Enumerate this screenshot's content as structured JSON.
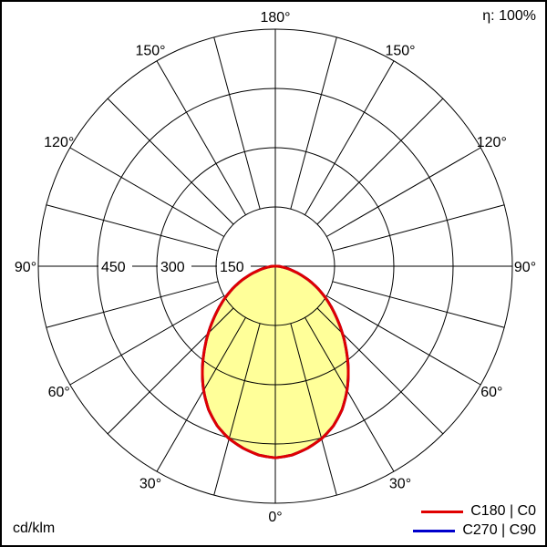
{
  "chart_data": {
    "type": "polar",
    "unit_label": "cd/klm",
    "efficiency_label": "η: 100%",
    "angle_step_deg": 5,
    "curve_fill_color": "#ffff99",
    "series": [
      {
        "name": "C180 | C0",
        "color": "#e00000",
        "values": [
          485,
          480,
          468,
          452,
          430,
          400,
          363,
          322,
          280,
          240,
          202,
          168,
          136,
          105,
          75,
          48,
          28,
          14,
          6
        ]
      },
      {
        "name": "C270 | C90",
        "color": "#0000cc",
        "values": [
          485,
          480,
          468,
          452,
          430,
          400,
          363,
          322,
          280,
          240,
          202,
          168,
          136,
          105,
          75,
          48,
          28,
          14,
          6
        ]
      }
    ],
    "grid": {
      "max_value": 600,
      "rings": [
        150,
        300,
        450,
        600
      ],
      "ring_labels": [
        {
          "value": 150,
          "label": "150"
        },
        {
          "value": 300,
          "label": "300"
        },
        {
          "value": 450,
          "label": "450"
        }
      ],
      "spoke_step_deg": 15,
      "angle_labels": [
        {
          "deg": 0,
          "label": "0°"
        },
        {
          "deg": 30,
          "label": "30°"
        },
        {
          "deg": 60,
          "label": "60°"
        },
        {
          "deg": 90,
          "label": "90°"
        },
        {
          "deg": 120,
          "label": "120°"
        },
        {
          "deg": 150,
          "label": "150°"
        },
        {
          "deg": 180,
          "label": "180°"
        }
      ]
    }
  }
}
